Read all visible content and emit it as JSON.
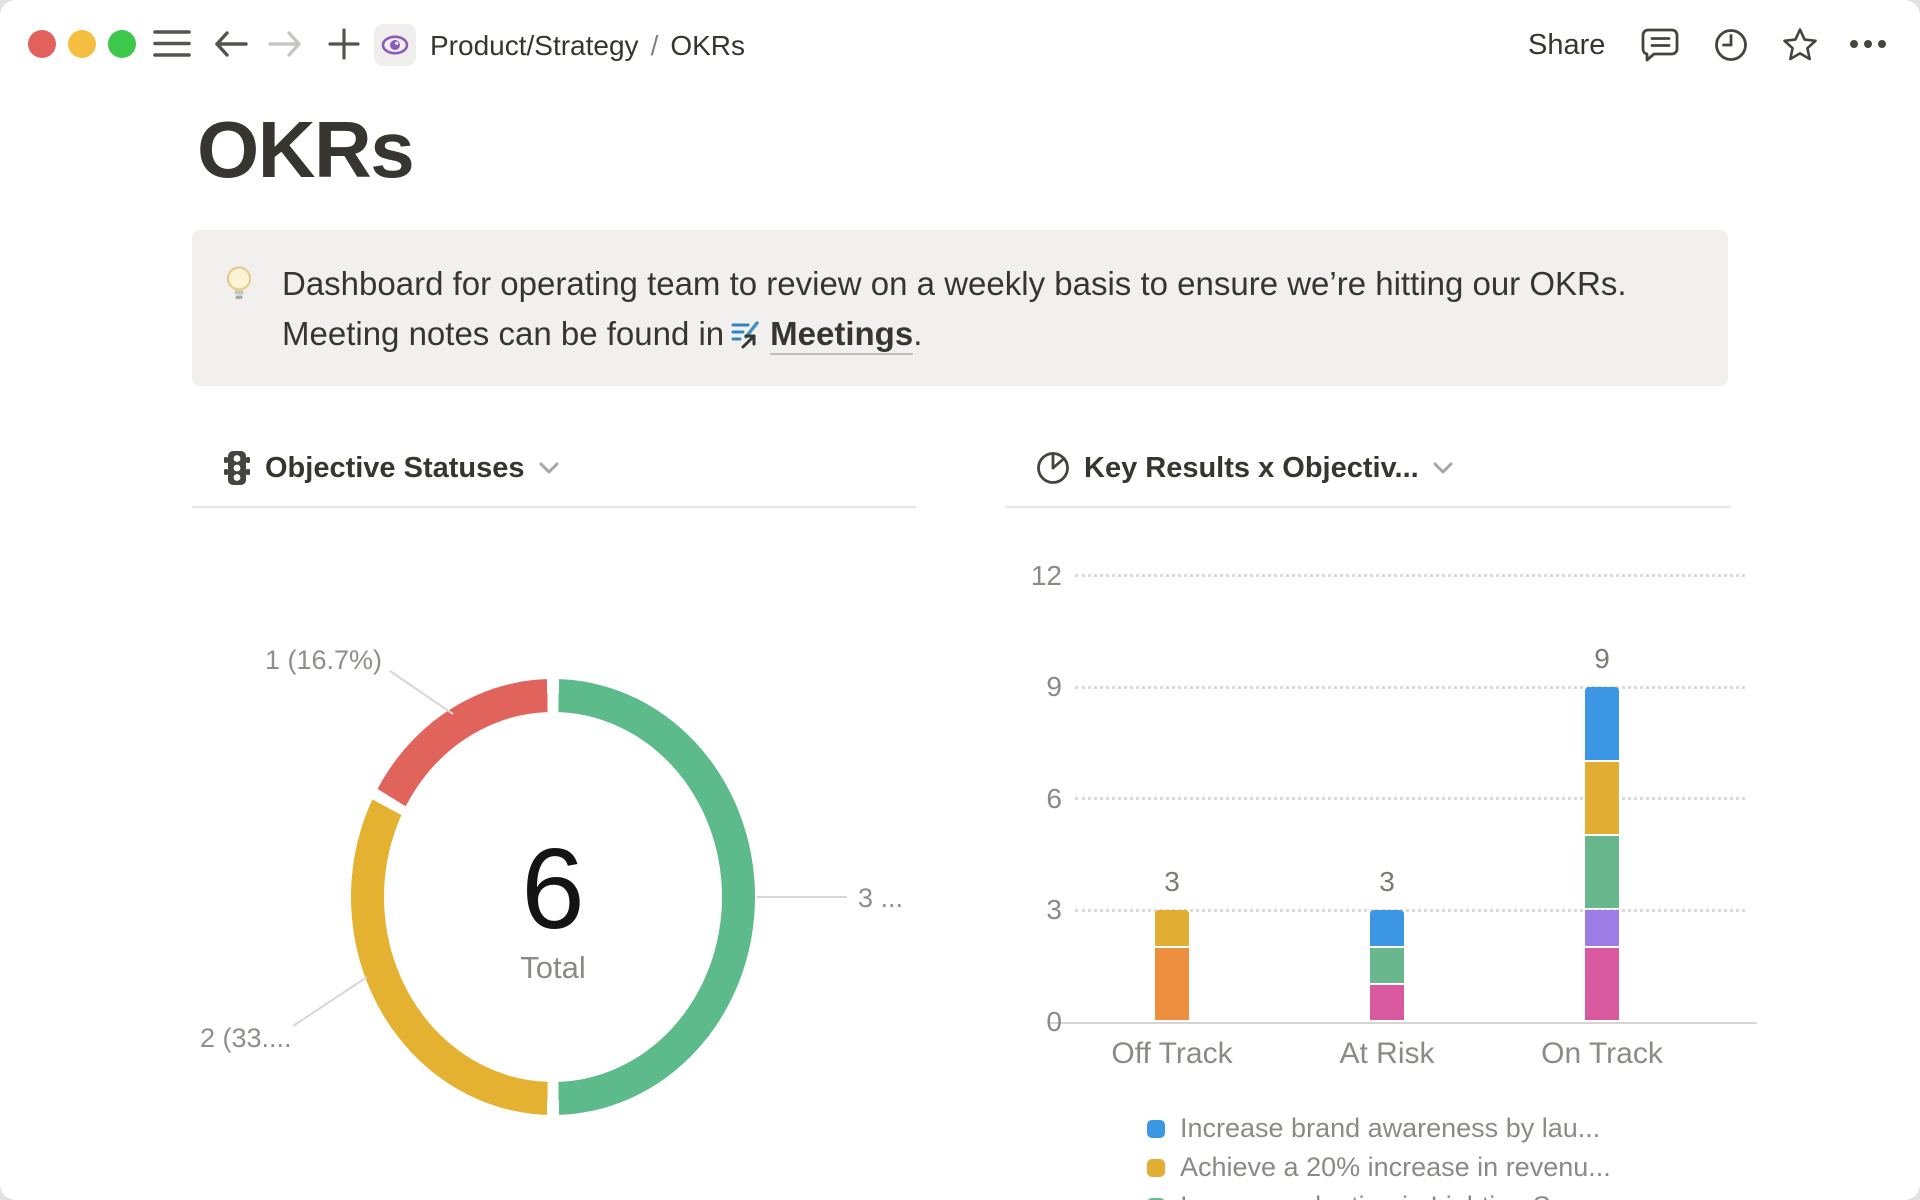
{
  "topbar": {
    "breadcrumb_parent": "Product/Strategy",
    "breadcrumb_separator": "/",
    "breadcrumb_current": "OKRs",
    "share_label": "Share"
  },
  "page": {
    "title": "OKRs"
  },
  "callout": {
    "line1": "Dashboard for operating team to review on a weekly basis to ensure we’re hitting our OKRs.",
    "line2_prefix": "Meeting notes can be found in",
    "link_text": "Meetings",
    "line2_suffix": "."
  },
  "left_chart": {
    "header": "Objective Statuses"
  },
  "right_chart": {
    "header": "Key Results x Objectiv..."
  },
  "chart_data": [
    {
      "type": "donut",
      "title": "Objective Statuses",
      "total": 6,
      "center_value": "6",
      "center_label": "Total",
      "slices": [
        {
          "value": 3,
          "percent": 50.0,
          "label": "3 ...",
          "color": "#5cba8b"
        },
        {
          "value": 2,
          "percent": 33.3,
          "label": "2 (33....",
          "color": "#e4b230"
        },
        {
          "value": 1,
          "percent": 16.7,
          "label": "1 (16.7%)",
          "color": "#e0635c"
        }
      ]
    },
    {
      "type": "bar",
      "stacked": true,
      "title": "Key Results x Objectiv...",
      "categories": [
        "Off Track",
        "At Risk",
        "On Track"
      ],
      "totals": [
        3,
        3,
        9
      ],
      "total_labels": [
        "3",
        "3",
        "9"
      ],
      "ylim": [
        0,
        12
      ],
      "yticks": [
        0,
        3,
        6,
        9,
        12
      ],
      "grid": "dotted",
      "palette": {
        "blue": "#3b97e3",
        "yellow": "#e2ad33",
        "green": "#68b78d",
        "pink": "#d9599f",
        "purple": "#9d7ce6",
        "orange": "#ec8e3d"
      },
      "stacks": [
        [
          {
            "color_key": "orange",
            "value": 2
          },
          {
            "color_key": "yellow",
            "value": 1
          }
        ],
        [
          {
            "color_key": "pink",
            "value": 1
          },
          {
            "color_key": "green",
            "value": 1
          },
          {
            "color_key": "blue",
            "value": 1
          }
        ],
        [
          {
            "color_key": "pink",
            "value": 2
          },
          {
            "color_key": "purple",
            "value": 1
          },
          {
            "color_key": "green",
            "value": 2
          },
          {
            "color_key": "yellow",
            "value": 2
          },
          {
            "color_key": "blue",
            "value": 2
          }
        ]
      ],
      "legend_position": "bottom",
      "legend": [
        {
          "color_key": "blue",
          "label": "Increase brand awareness by lau..."
        },
        {
          "color_key": "yellow",
          "label": "Achieve a 20% increase in revenu..."
        },
        {
          "color_key": "green",
          "label": "Increase adoption in Lighting Sea..."
        }
      ]
    }
  ],
  "window_colors": {
    "traffic_red": "#e2615c",
    "traffic_yellow": "#f6be40",
    "traffic_green": "#3dc84b"
  }
}
